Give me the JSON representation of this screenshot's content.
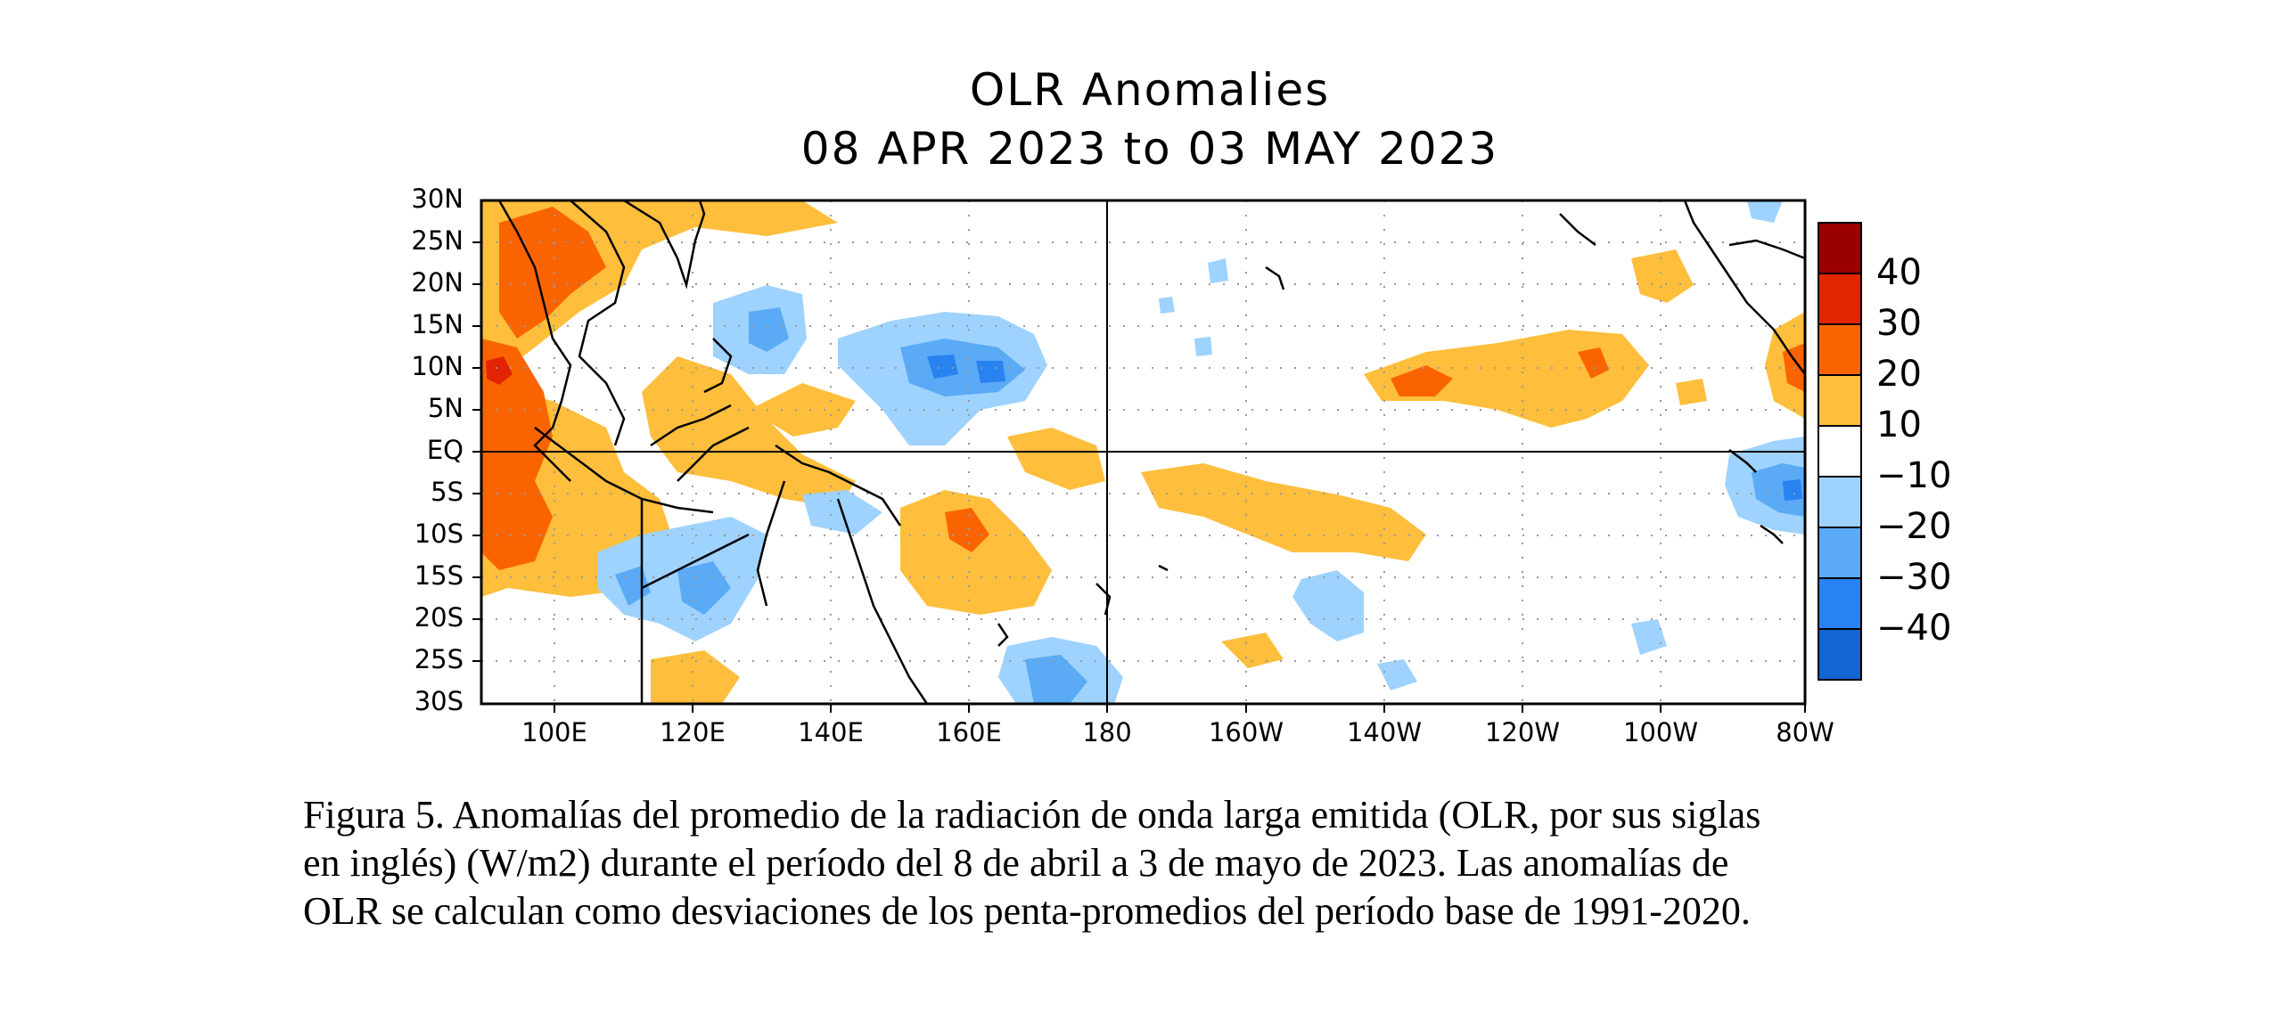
{
  "title": "OLR Anomalies",
  "subtitle": "08 APR 2023 to 03 MAY 2023",
  "lat_labels": [
    "30N",
    "25N",
    "20N",
    "15N",
    "10N",
    "5N",
    "EQ",
    "5S",
    "10S",
    "15S",
    "20S",
    "25S",
    "30S"
  ],
  "lon_labels": [
    "100E",
    "120E",
    "140E",
    "160E",
    "180",
    "160W",
    "140W",
    "120W",
    "100W",
    "80W"
  ],
  "colorbar": {
    "labels": [
      "40",
      "30",
      "20",
      "10",
      "−10",
      "−20",
      "−30",
      "−40"
    ],
    "colors": [
      "#9b0000",
      "#e32400",
      "#fa6400",
      "#ffbe3c",
      "#ffffff",
      "#9ed2ff",
      "#5aaaf5",
      "#2882f0",
      "#1464d2"
    ]
  },
  "caption": {
    "line1": "Figura 5. Anomalías del promedio de la radiación de onda larga emitida (OLR, por sus siglas",
    "line2": "en inglés) (W/m2) durante el período del 8 de abril a 3 de mayo de 2023.  Las anomalías de",
    "line3": "OLR se calculan como desviaciones de los penta-promedios del período base de 1991-2020."
  }
}
